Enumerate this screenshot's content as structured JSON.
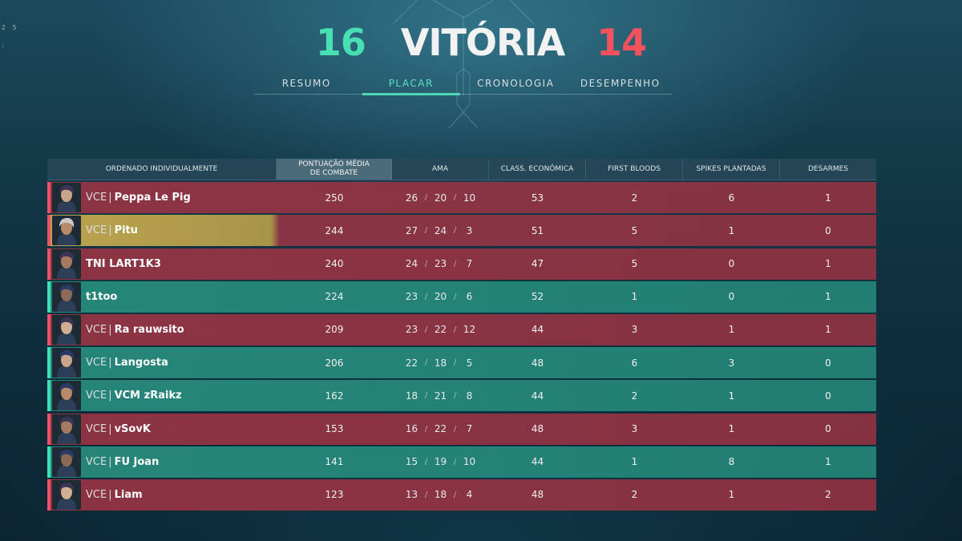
{
  "side_digits": "2 5",
  "score": {
    "ally": "16",
    "result": "VITÓRIA",
    "enemy": "14"
  },
  "colors": {
    "ally": "#48e0b2",
    "enemy": "#f1525b",
    "row_red": "#963444",
    "row_green": "#288c7e",
    "row_gold": "#c4aa50"
  },
  "tabs": [
    {
      "label": "RESUMO",
      "active": false
    },
    {
      "label": "PLACAR",
      "active": true
    },
    {
      "label": "CRONOLOGIA",
      "active": false
    },
    {
      "label": "DESEMPENHO",
      "active": false
    }
  ],
  "columns": {
    "name": "ORDENADO INDIVIDUALMENTE",
    "acs_line1": "PONTUAÇÃO MÉDIA",
    "acs_line2": "DE COMBATE",
    "kda": "AMA",
    "econ": "CLASS. ECONÔMICA",
    "fb": "FIRST BLOODS",
    "spikes": "SPIKES PLANTADAS",
    "defuses": "DESARMES"
  },
  "players": [
    {
      "tag": "VCE",
      "name": "Peppa Le Pig",
      "acs": "250",
      "k": "26",
      "d": "20",
      "a": "10",
      "econ": "53",
      "fb": "2",
      "spikes": "6",
      "defuses": "1",
      "team": "red",
      "avatar": "agent-portrait-icon"
    },
    {
      "tag": "VCE",
      "name": "Pitu",
      "acs": "244",
      "k": "27",
      "d": "24",
      "a": "3",
      "econ": "51",
      "fb": "5",
      "spikes": "1",
      "defuses": "0",
      "team": "gold",
      "avatar": "agent-portrait-icon"
    },
    {
      "tag": "",
      "name": "TNI LART1K3",
      "acs": "240",
      "k": "24",
      "d": "23",
      "a": "7",
      "econ": "47",
      "fb": "5",
      "spikes": "0",
      "defuses": "1",
      "team": "red",
      "avatar": "agent-portrait-icon"
    },
    {
      "tag": "",
      "name": "t1too",
      "acs": "224",
      "k": "23",
      "d": "20",
      "a": "6",
      "econ": "52",
      "fb": "1",
      "spikes": "0",
      "defuses": "1",
      "team": "green",
      "avatar": "agent-portrait-icon"
    },
    {
      "tag": "VCE",
      "name": "Ra rauwsito",
      "acs": "209",
      "k": "23",
      "d": "22",
      "a": "12",
      "econ": "44",
      "fb": "3",
      "spikes": "1",
      "defuses": "1",
      "team": "red",
      "avatar": "agent-portrait-icon"
    },
    {
      "tag": "VCE",
      "name": "Langosta",
      "acs": "206",
      "k": "22",
      "d": "18",
      "a": "5",
      "econ": "48",
      "fb": "6",
      "spikes": "3",
      "defuses": "0",
      "team": "green",
      "avatar": "agent-portrait-icon"
    },
    {
      "tag": "VCE",
      "name": "VCM zRaikz",
      "acs": "162",
      "k": "18",
      "d": "21",
      "a": "8",
      "econ": "44",
      "fb": "2",
      "spikes": "1",
      "defuses": "0",
      "team": "green",
      "avatar": "agent-portrait-icon"
    },
    {
      "tag": "VCE",
      "name": "vSovK",
      "acs": "153",
      "k": "16",
      "d": "22",
      "a": "7",
      "econ": "48",
      "fb": "3",
      "spikes": "1",
      "defuses": "0",
      "team": "red",
      "avatar": "agent-portrait-icon"
    },
    {
      "tag": "VCE",
      "name": "FU Joan",
      "acs": "141",
      "k": "15",
      "d": "19",
      "a": "10",
      "econ": "44",
      "fb": "1",
      "spikes": "8",
      "defuses": "1",
      "team": "green",
      "avatar": "agent-portrait-icon"
    },
    {
      "tag": "VCE",
      "name": "Liam",
      "acs": "123",
      "k": "13",
      "d": "18",
      "a": "4",
      "econ": "48",
      "fb": "2",
      "spikes": "1",
      "defuses": "2",
      "team": "red",
      "avatar": "agent-portrait-icon"
    }
  ]
}
